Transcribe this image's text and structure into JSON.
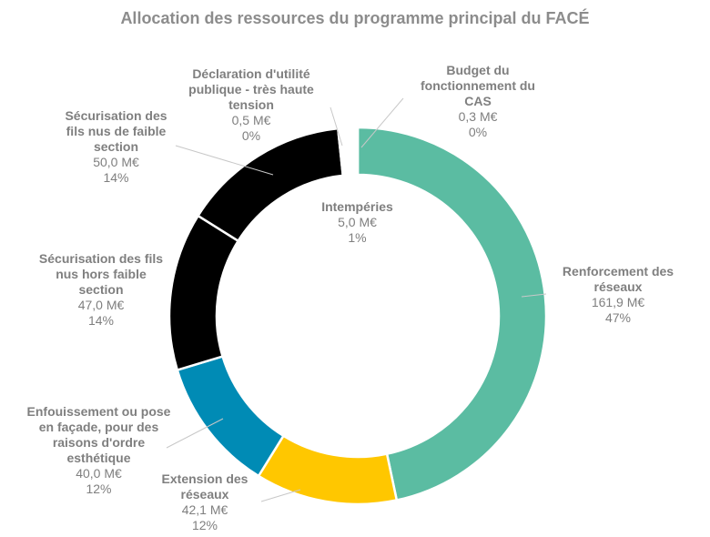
{
  "chart_data": {
    "type": "pie",
    "variant": "donut",
    "title": "Allocation des ressources du programme principal du FACÉ",
    "unit": "M€",
    "slices": [
      {
        "name": "Renforcement des réseaux",
        "value": 161.9,
        "value_label": "161,9 M€",
        "percent_label": "47%",
        "color": "#5bbca2"
      },
      {
        "name": "Extension des réseaux",
        "value": 42.1,
        "value_label": "42,1 M€",
        "percent_label": "12%",
        "color": "#ffc700"
      },
      {
        "name": "Enfouissement ou pose en façade, pour des raisons d'ordre esthétique",
        "value": 40.0,
        "value_label": "40,0 M€",
        "percent_label": "12%",
        "color": "#008bb5"
      },
      {
        "name": "Sécurisation des fils nus hors faible section",
        "value": 47.0,
        "value_label": "47,0 M€",
        "percent_label": "14%",
        "color": "#000000"
      },
      {
        "name": "Sécurisation des fils nus de faible section",
        "value": 50.0,
        "value_label": "50,0 M€",
        "percent_label": "14%",
        "color": "#000000"
      },
      {
        "name": "Déclaration d'utilité publique - très haute tension",
        "value": 0.5,
        "value_label": "0,5 M€",
        "percent_label": "0%",
        "color": "#9aa7b0"
      },
      {
        "name": "Intempéries",
        "value": 5.0,
        "value_label": "5,0 M€",
        "percent_label": "1%",
        "color": "#ffffff"
      },
      {
        "name": "Budget du fonctionnement du CAS",
        "value": 0.3,
        "value_label": "0,3 M€",
        "percent_label": "0%",
        "color": "#2e6f5c"
      }
    ],
    "start_angle_deg": 0,
    "direction": "clockwise",
    "legend": "none"
  }
}
